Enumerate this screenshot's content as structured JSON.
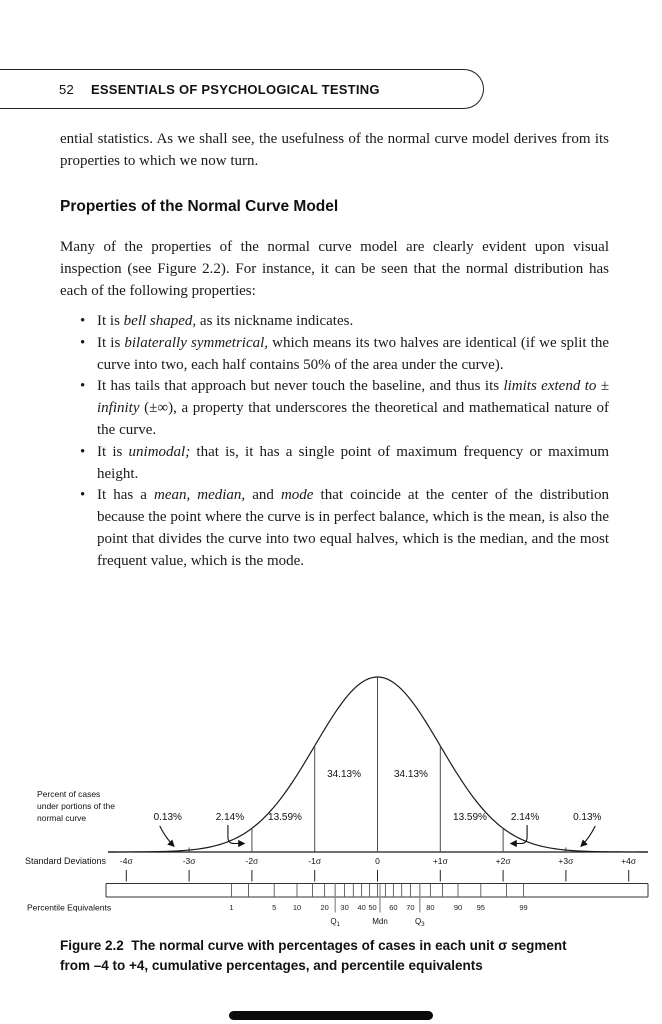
{
  "header": {
    "page_number": "52",
    "running_title": "ESSENTIALS OF PSYCHOLOGICAL TESTING"
  },
  "body": {
    "intro_paragraph": "ential statistics. As we shall see, the usefulness of the normal curve model derives from its properties to which we now turn.",
    "section_heading": "Properties of the Normal Curve Model",
    "lead_paragraph": "Many of the properties of the normal curve model are clearly evident upon visual inspection (see Figure 2.2). For instance, it can be seen that the normal distribu­tion has each of the following properties:",
    "bullets": [
      [
        {
          "t": "It is "
        },
        {
          "t": "bell shaped,",
          "i": true
        },
        {
          "t": " as its nickname indicates."
        }
      ],
      [
        {
          "t": "It is "
        },
        {
          "t": "bilaterally symmetrical,",
          "i": true
        },
        {
          "t": " which means its two halves are identical (if we split the curve into two, each half contains 50% of the area under the curve)."
        }
      ],
      [
        {
          "t": "It has tails that approach but never touch the baseline, and thus its "
        },
        {
          "t": "limits extend to ± infinity",
          "i": true
        },
        {
          "t": " (±∞), a property that underscores the theoretical and mathematical nature of the curve."
        }
      ],
      [
        {
          "t": "It is "
        },
        {
          "t": "unimodal;",
          "i": true
        },
        {
          "t": " that is, it has a single point of maximum frequency or maximum height."
        }
      ],
      [
        {
          "t": "It has a "
        },
        {
          "t": "mean, median,",
          "i": true
        },
        {
          "t": " and "
        },
        {
          "t": "mode",
          "i": true
        },
        {
          "t": " that coincide at the center of the distribu­tion because the point where the curve is in perfect balance, which is the mean, is also the point that divides the curve into two equal halves, which is the median, and the most frequent value, which is the mode."
        }
      ]
    ]
  },
  "figure": {
    "caption_line1": "Figure 2.2  The normal curve with percentages of cases in each unit σ segment",
    "caption_line2": "from –4 to +4, cumulative percentages, and percentile equivalents",
    "left_labels": {
      "percent_of_cases": [
        "Percent of cases",
        "under portions of the",
        "normal curve"
      ],
      "standard_deviations": "Standard Deviations",
      "percentile_equivalents": "Percentile Equivalents"
    }
  },
  "chart_data": {
    "type": "area",
    "description": "Standard normal (bell) curve showing percent of cases in each standard-deviation segment, with standard deviation axis and percentile equivalents scale",
    "x_axis": {
      "label": "Standard Deviations",
      "tick_labels": [
        "-4σ",
        "-3σ",
        "-2σ",
        "-1σ",
        "0",
        "+1σ",
        "+2σ",
        "+3σ",
        "+4σ"
      ],
      "tick_sigma": [
        -4,
        -3,
        -2,
        -1,
        0,
        1,
        2,
        3,
        4
      ],
      "range_sigma": [
        -4,
        4
      ]
    },
    "segments": {
      "boundaries_sigma": [
        -4,
        -3,
        -2,
        -1,
        0,
        1,
        2,
        3,
        4
      ],
      "percent_labels": [
        "0.13%",
        "2.14%",
        "13.59%",
        "34.13%",
        "34.13%",
        "13.59%",
        "2.14%",
        "0.13%"
      ],
      "values": [
        0.13,
        2.14,
        13.59,
        34.13,
        34.13,
        13.59,
        2.14,
        0.13
      ]
    },
    "percentile_scale": {
      "label": "Percentile Equivalents",
      "tick_percentiles": [
        1,
        2,
        5,
        10,
        15,
        20,
        25,
        30,
        35,
        40,
        45,
        50,
        55,
        60,
        65,
        70,
        75,
        80,
        85,
        90,
        95,
        98,
        99
      ],
      "labeled_percentiles": [
        1,
        5,
        10,
        20,
        30,
        40,
        50,
        60,
        70,
        80,
        90,
        95,
        99
      ],
      "quartiles": [
        {
          "text": "Q",
          "sub": "1",
          "percentile": 25
        },
        {
          "text": "Mdn",
          "sub": "",
          "percentile": 50
        },
        {
          "text": "Q",
          "sub": "3",
          "percentile": 75
        }
      ]
    }
  }
}
